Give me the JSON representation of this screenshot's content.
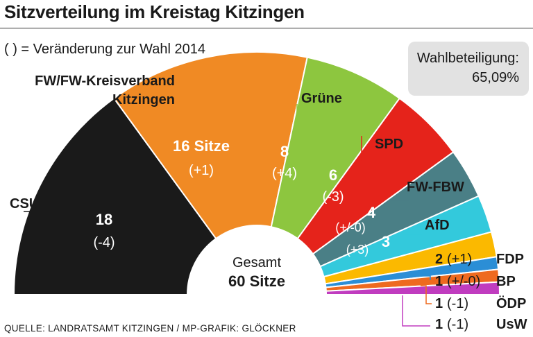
{
  "title": "Sitzverteilung im Kreistag Kitzingen",
  "subtitle": "( ) = Veränderung zur Wahl 2014",
  "turnout": {
    "label": "Wahlbeteiligung:",
    "value": "65,09%"
  },
  "source": "QUELLE: LANDRATSAMT KITZINGEN / MP-GRAFIK: GLÖCKNER",
  "chart_data": {
    "type": "pie",
    "subtype": "half-donut parliament chart",
    "total_label": "Gesamt",
    "total_value": "60 Sitze",
    "total": 60,
    "series": [
      {
        "name": "CSU",
        "seats": 18,
        "seats_label": "18",
        "change": "(-4)",
        "color": "#1a1a1a"
      },
      {
        "name_lines": [
          "FW/FW-Kreisverband",
          "Kitzingen"
        ],
        "seats": 16,
        "seats_label": "16 Sitze",
        "change": "(+1)",
        "color": "#f08a24"
      },
      {
        "name": "Grüne",
        "seats": 8,
        "seats_label": "8",
        "change": "(+4)",
        "color": "#8dc63f"
      },
      {
        "name": "SPD",
        "seats": 6,
        "seats_label": "6",
        "change": "(-3)",
        "color": "#e5231b"
      },
      {
        "name": "FW-FBW",
        "seats": 4,
        "seats_label": "4",
        "change": "(+/-0)",
        "color": "#4a7f86"
      },
      {
        "name": "AfD",
        "seats": 3,
        "seats_label": "3",
        "change": "(+3)",
        "color": "#33c9dc"
      },
      {
        "name": "FDP",
        "seats": 2,
        "seats_label": "2",
        "change": "(+1)",
        "color": "#fbb900"
      },
      {
        "name": "BP",
        "seats": 1,
        "seats_label": "1",
        "change": "(+/-0)",
        "color": "#2b8ed6"
      },
      {
        "name": "ÖDP",
        "seats": 1,
        "seats_label": "1",
        "change": "(-1)",
        "color": "#ee6a1f"
      },
      {
        "name": "UsW",
        "seats": 1,
        "seats_label": "1",
        "change": "(-1)",
        "color": "#c03cbf"
      }
    ]
  }
}
